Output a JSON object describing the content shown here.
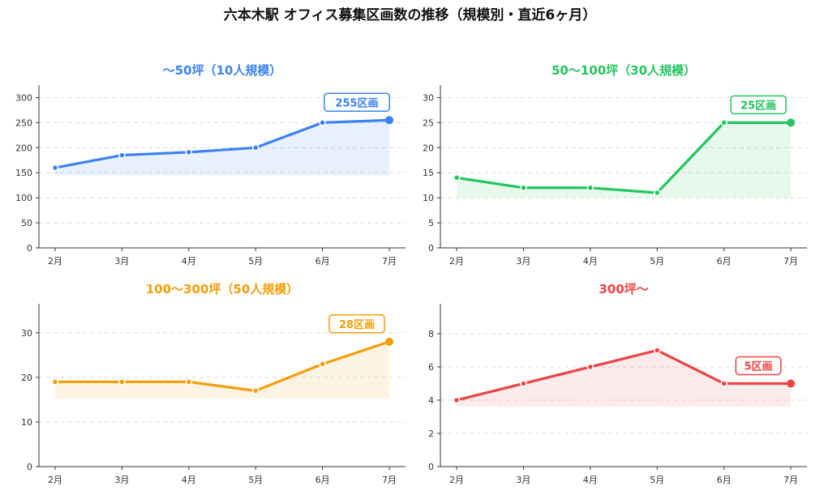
{
  "title": "六本木駅 オフィス募集区画数の推移（規模別・直近6ヶ月）",
  "chart_data": [
    {
      "type": "line",
      "title": "〜50坪（10人規模）",
      "color": "#3b82f6",
      "categories": [
        "2月",
        "3月",
        "4月",
        "5月",
        "6月",
        "7月"
      ],
      "values": [
        160,
        185,
        191,
        200,
        250,
        255
      ],
      "ylim": [
        0,
        325
      ],
      "yticks": [
        0,
        50,
        100,
        150,
        200,
        250,
        300
      ],
      "grid": true,
      "fill_base": 145,
      "annotation": "255区画"
    },
    {
      "type": "line",
      "title": "50〜100坪（30人規模）",
      "color": "#22c55e",
      "categories": [
        "2月",
        "3月",
        "4月",
        "5月",
        "6月",
        "7月"
      ],
      "values": [
        14,
        12,
        12,
        11,
        25,
        25
      ],
      "ylim": [
        0,
        32.5
      ],
      "yticks": [
        0,
        5,
        10,
        15,
        20,
        25,
        30
      ],
      "grid": true,
      "fill_base": 10,
      "annotation": "25区画"
    },
    {
      "type": "line",
      "title": "100〜300坪（50人規模）",
      "color": "#f59e0b",
      "categories": [
        "2月",
        "3月",
        "4月",
        "5月",
        "6月",
        "7月"
      ],
      "values": [
        19,
        19,
        19,
        17,
        23,
        28
      ],
      "ylim": [
        0,
        36.5
      ],
      "yticks": [
        0,
        10,
        20,
        30
      ],
      "grid": true,
      "fill_base": 15.3,
      "annotation": "28区画"
    },
    {
      "type": "line",
      "title": "300坪〜",
      "color": "#ef4444",
      "categories": [
        "2月",
        "3月",
        "4月",
        "5月",
        "6月",
        "7月"
      ],
      "values": [
        4,
        5,
        6,
        7,
        5,
        5
      ],
      "ylim": [
        0,
        9.8
      ],
      "yticks": [
        0,
        2,
        4,
        6,
        8
      ],
      "grid": true,
      "fill_base": 3.6,
      "annotation": "5区画"
    }
  ]
}
